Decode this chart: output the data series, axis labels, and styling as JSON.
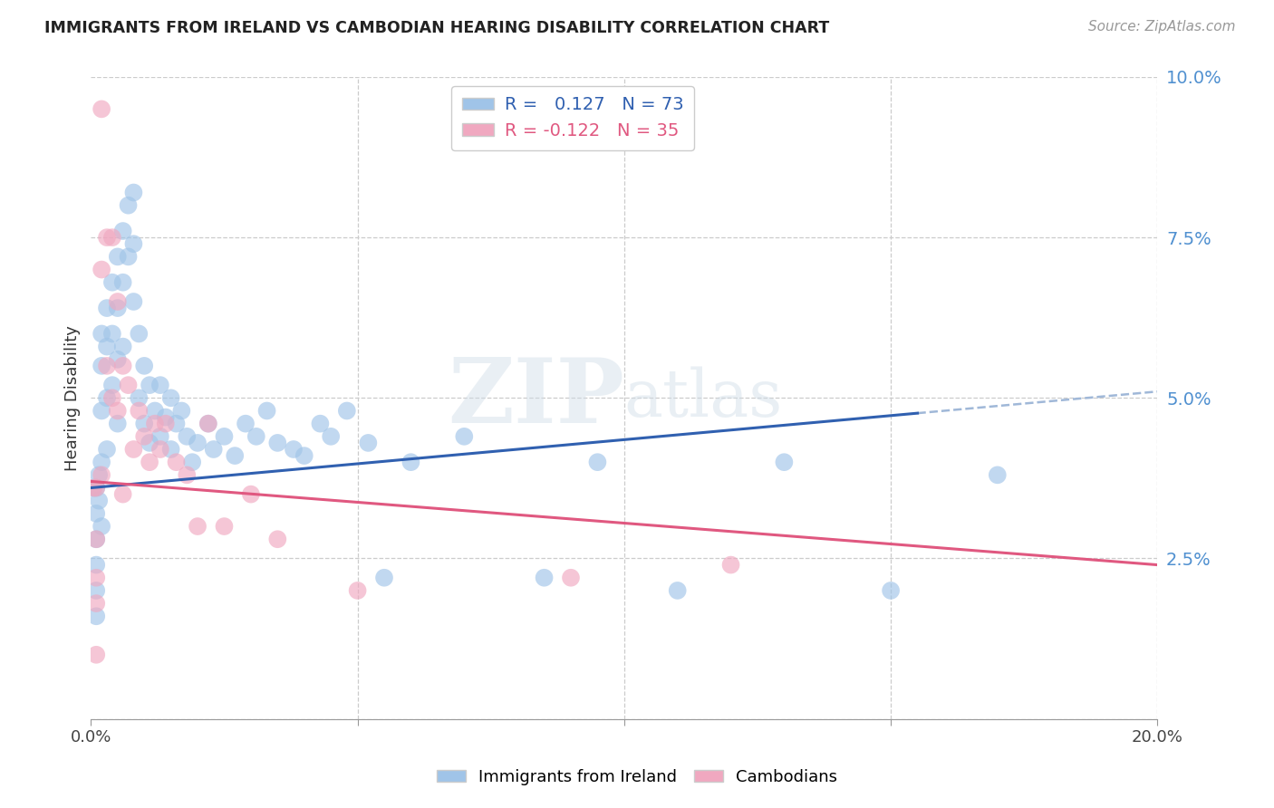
{
  "title": "IMMIGRANTS FROM IRELAND VS CAMBODIAN HEARING DISABILITY CORRELATION CHART",
  "source": "Source: ZipAtlas.com",
  "ylabel": "Hearing Disability",
  "xlim": [
    0.0,
    0.2
  ],
  "ylim": [
    0.0,
    0.1
  ],
  "yticks": [
    0.0,
    0.025,
    0.05,
    0.075,
    0.1
  ],
  "ytick_labels": [
    "",
    "2.5%",
    "5.0%",
    "7.5%",
    "10.0%"
  ],
  "xticks": [
    0.0,
    0.05,
    0.1,
    0.15,
    0.2
  ],
  "xtick_labels": [
    "0.0%",
    "",
    "",
    "",
    "20.0%"
  ],
  "ireland_R": 0.127,
  "ireland_N": 73,
  "cambodian_R": -0.122,
  "cambodian_N": 35,
  "ireland_color": "#a0c4e8",
  "cambodian_color": "#f0a8c0",
  "ireland_line_color": "#3060b0",
  "cambodian_line_color": "#e05880",
  "dashed_line_color": "#a0b8d8",
  "background_color": "#ffffff",
  "grid_color": "#cccccc",
  "watermark": "ZIPatlas",
  "ireland_line_x0": 0.0,
  "ireland_line_y0": 0.036,
  "ireland_line_x1": 0.2,
  "ireland_line_y1": 0.051,
  "cambodian_line_x0": 0.0,
  "cambodian_line_y0": 0.037,
  "cambodian_line_x1": 0.2,
  "cambodian_line_y1": 0.024,
  "ireland_x": [
    0.0005,
    0.001,
    0.001,
    0.001,
    0.001,
    0.001,
    0.001,
    0.0015,
    0.0015,
    0.002,
    0.002,
    0.002,
    0.002,
    0.002,
    0.003,
    0.003,
    0.003,
    0.003,
    0.004,
    0.004,
    0.004,
    0.005,
    0.005,
    0.005,
    0.005,
    0.006,
    0.006,
    0.006,
    0.007,
    0.007,
    0.008,
    0.008,
    0.008,
    0.009,
    0.009,
    0.01,
    0.01,
    0.011,
    0.011,
    0.012,
    0.013,
    0.013,
    0.014,
    0.015,
    0.015,
    0.016,
    0.017,
    0.018,
    0.019,
    0.02,
    0.022,
    0.023,
    0.025,
    0.027,
    0.029,
    0.031,
    0.033,
    0.035,
    0.038,
    0.04,
    0.043,
    0.045,
    0.048,
    0.052,
    0.055,
    0.06,
    0.07,
    0.085,
    0.095,
    0.11,
    0.13,
    0.15,
    0.17
  ],
  "ireland_y": [
    0.036,
    0.036,
    0.032,
    0.028,
    0.024,
    0.02,
    0.016,
    0.038,
    0.034,
    0.06,
    0.055,
    0.048,
    0.04,
    0.03,
    0.064,
    0.058,
    0.05,
    0.042,
    0.068,
    0.06,
    0.052,
    0.072,
    0.064,
    0.056,
    0.046,
    0.076,
    0.068,
    0.058,
    0.08,
    0.072,
    0.082,
    0.074,
    0.065,
    0.06,
    0.05,
    0.055,
    0.046,
    0.052,
    0.043,
    0.048,
    0.052,
    0.044,
    0.047,
    0.05,
    0.042,
    0.046,
    0.048,
    0.044,
    0.04,
    0.043,
    0.046,
    0.042,
    0.044,
    0.041,
    0.046,
    0.044,
    0.048,
    0.043,
    0.042,
    0.041,
    0.046,
    0.044,
    0.048,
    0.043,
    0.022,
    0.04,
    0.044,
    0.022,
    0.04,
    0.02,
    0.04,
    0.02,
    0.038
  ],
  "cambodian_x": [
    0.0005,
    0.001,
    0.001,
    0.001,
    0.001,
    0.001,
    0.002,
    0.002,
    0.002,
    0.003,
    0.003,
    0.004,
    0.004,
    0.005,
    0.005,
    0.006,
    0.006,
    0.007,
    0.008,
    0.009,
    0.01,
    0.011,
    0.012,
    0.013,
    0.014,
    0.016,
    0.018,
    0.02,
    0.022,
    0.025,
    0.03,
    0.035,
    0.05,
    0.09,
    0.12
  ],
  "cambodian_y": [
    0.036,
    0.036,
    0.028,
    0.022,
    0.018,
    0.01,
    0.095,
    0.07,
    0.038,
    0.075,
    0.055,
    0.075,
    0.05,
    0.065,
    0.048,
    0.055,
    0.035,
    0.052,
    0.042,
    0.048,
    0.044,
    0.04,
    0.046,
    0.042,
    0.046,
    0.04,
    0.038,
    0.03,
    0.046,
    0.03,
    0.035,
    0.028,
    0.02,
    0.022,
    0.024
  ]
}
